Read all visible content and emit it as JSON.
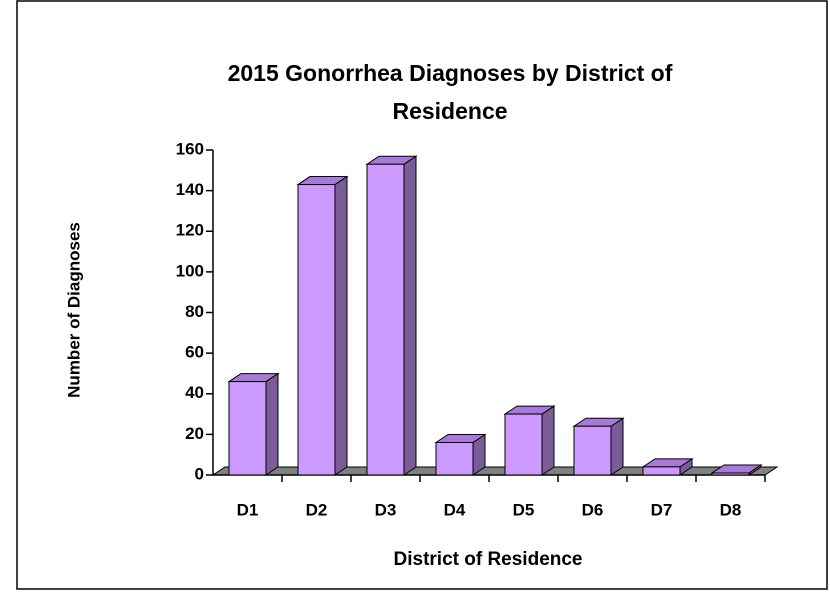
{
  "chart_data": {
    "type": "bar3d",
    "title": "2015 Gonorrhea Diagnoses by District of Residence",
    "x_label": "District of Residence",
    "y_label": "Number of Diagnoses",
    "categories": [
      "D1",
      "D2",
      "D3",
      "D4",
      "D5",
      "D6",
      "D7",
      "D8"
    ],
    "values": [
      46,
      143,
      153,
      16,
      30,
      24,
      4,
      1
    ],
    "color": "#cc99ff",
    "ylim": [
      0,
      160
    ],
    "yticks": [
      0,
      20,
      40,
      60,
      80,
      100,
      120,
      140,
      160
    ],
    "grid": false
  }
}
